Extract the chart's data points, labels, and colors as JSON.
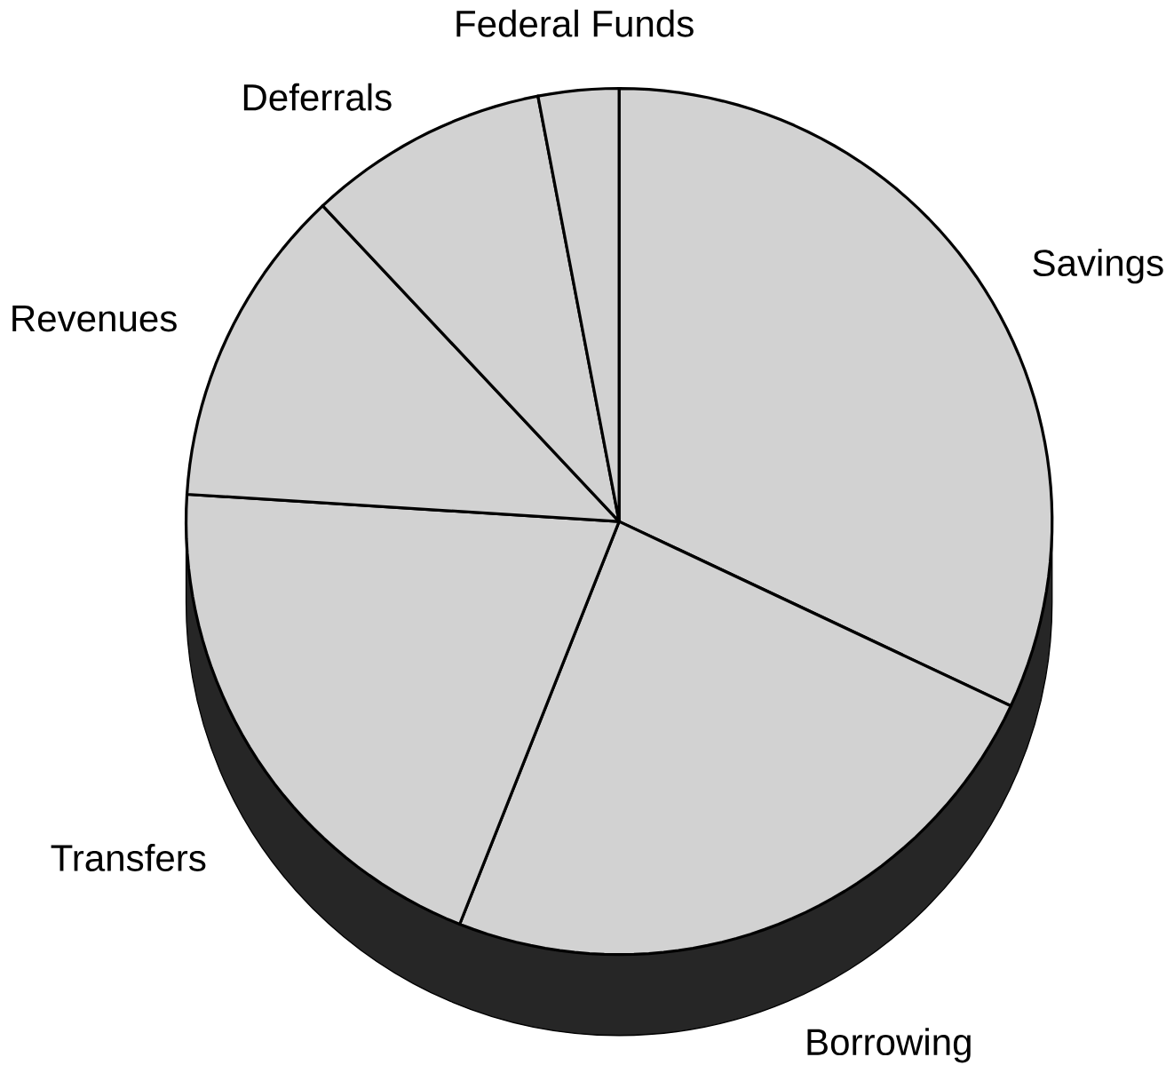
{
  "chart_data": {
    "type": "pie",
    "categories": [
      "Savings",
      "Borrowing",
      "Transfers",
      "Revenues",
      "Deferrals",
      "Federal Funds"
    ],
    "values": [
      32,
      24,
      20,
      12,
      9,
      3
    ],
    "colors": [
      "#d2d2d2",
      "#d2d2d2",
      "#d2d2d2",
      "#d2d2d2",
      "#d2d2d2",
      "#d2d2d2"
    ]
  }
}
